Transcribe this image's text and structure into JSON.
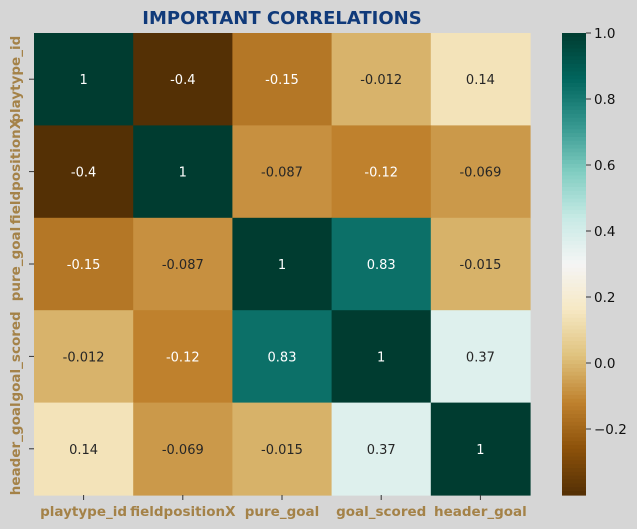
{
  "chart_data": {
    "type": "heatmap",
    "title": "IMPORTANT CORRELATIONS",
    "x_categories": [
      "playtype_id",
      "fieldpositionX",
      "pure_goal",
      "goal_scored",
      "header_goal"
    ],
    "y_categories": [
      "playtype_id",
      "fieldpositionX",
      "pure_goal",
      "goal_scored",
      "header_goal"
    ],
    "values": [
      [
        1,
        -0.4,
        -0.15,
        -0.012,
        0.14
      ],
      [
        -0.4,
        1,
        -0.087,
        -0.12,
        -0.069
      ],
      [
        -0.15,
        -0.087,
        1,
        0.83,
        -0.015
      ],
      [
        -0.012,
        -0.12,
        0.83,
        1,
        0.37
      ],
      [
        0.14,
        -0.069,
        -0.015,
        0.37,
        1
      ]
    ],
    "annotations": [
      [
        "1",
        "-0.4",
        "-0.15",
        "-0.012",
        "0.14"
      ],
      [
        "-0.4",
        "1",
        "-0.087",
        "-0.12",
        "-0.069"
      ],
      [
        "-0.15",
        "-0.087",
        "1",
        "0.83",
        "-0.015"
      ],
      [
        "-0.012",
        "-0.12",
        "0.83",
        "1",
        "0.37"
      ],
      [
        "0.14",
        "-0.069",
        "-0.015",
        "0.37",
        "1"
      ]
    ],
    "colormap": "BrBG",
    "vmin": -0.4,
    "vmax": 1.0,
    "colorbar_ticks": [
      1.0,
      0.8,
      0.6,
      0.4,
      0.2,
      0.0,
      -0.2
    ],
    "colorbar_tick_labels": [
      "1.0",
      "0.8",
      "0.6",
      "0.4",
      "0.2",
      "0.0",
      "−0.2"
    ]
  },
  "colors": {
    "background": "#d6d6d6",
    "title": "#103a7a",
    "axis_label": "#a48248",
    "tick_text": "#111111"
  }
}
